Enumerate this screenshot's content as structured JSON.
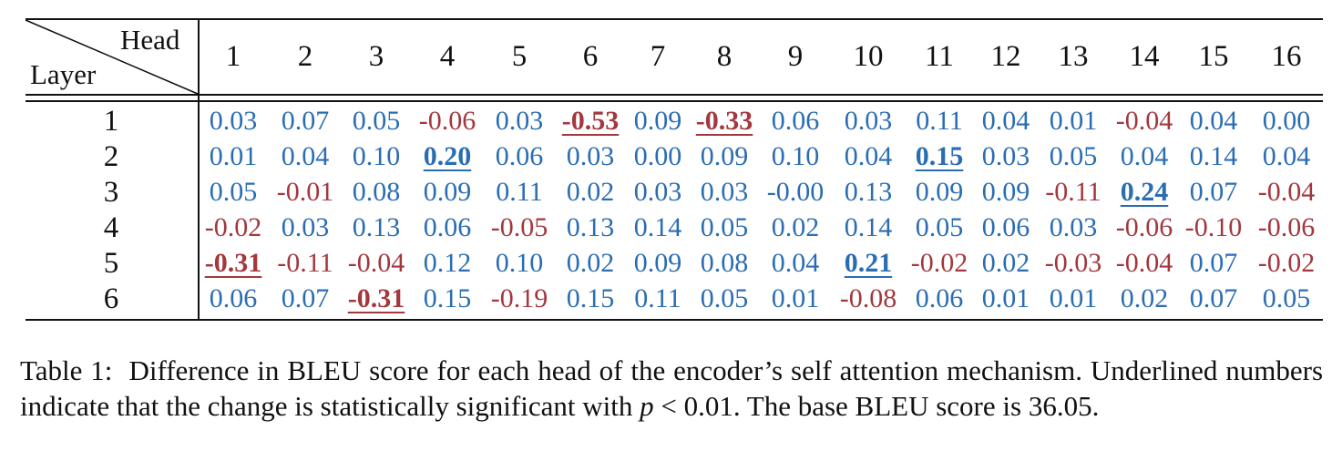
{
  "table": {
    "corner_col_label": "Head",
    "corner_row_label": "Layer",
    "heads": [
      "1",
      "2",
      "3",
      "4",
      "5",
      "6",
      "7",
      "8",
      "9",
      "10",
      "11",
      "12",
      "13",
      "14",
      "15",
      "16"
    ],
    "layers": [
      "1",
      "2",
      "3",
      "4",
      "5",
      "6"
    ],
    "values": [
      [
        "0.03",
        "0.07",
        "0.05",
        "-0.06",
        "0.03",
        "-0.53",
        "0.09",
        "-0.33",
        "0.06",
        "0.03",
        "0.11",
        "0.04",
        "0.01",
        "-0.04",
        "0.04",
        "0.00"
      ],
      [
        "0.01",
        "0.04",
        "0.10",
        "0.20",
        "0.06",
        "0.03",
        "0.00",
        "0.09",
        "0.10",
        "0.04",
        "0.15",
        "0.03",
        "0.05",
        "0.04",
        "0.14",
        "0.04"
      ],
      [
        "0.05",
        "-0.01",
        "0.08",
        "0.09",
        "0.11",
        "0.02",
        "0.03",
        "0.03",
        "-0.00",
        "0.13",
        "0.09",
        "0.09",
        "-0.11",
        "0.24",
        "0.07",
        "-0.04"
      ],
      [
        "-0.02",
        "0.03",
        "0.13",
        "0.06",
        "-0.05",
        "0.13",
        "0.14",
        "0.05",
        "0.02",
        "0.14",
        "0.05",
        "0.06",
        "0.03",
        "-0.06",
        "-0.10",
        "-0.06"
      ],
      [
        "-0.31",
        "-0.11",
        "-0.04",
        "0.12",
        "0.10",
        "0.02",
        "0.09",
        "0.08",
        "0.04",
        "0.21",
        "-0.02",
        "0.02",
        "-0.03",
        "-0.04",
        "0.07",
        "-0.02"
      ],
      [
        "0.06",
        "0.07",
        "-0.31",
        "0.15",
        "-0.19",
        "0.15",
        "0.11",
        "0.05",
        "0.01",
        "-0.08",
        "0.06",
        "0.01",
        "0.01",
        "0.02",
        "0.07",
        "0.05"
      ]
    ],
    "significant": [
      [
        0,
        5
      ],
      [
        0,
        7
      ],
      [
        1,
        3
      ],
      [
        1,
        10
      ],
      [
        2,
        13
      ],
      [
        4,
        0
      ],
      [
        4,
        9
      ],
      [
        5,
        2
      ]
    ],
    "colors": {
      "positive": "#2a6db3",
      "negative": "#a3383e"
    }
  },
  "caption": {
    "label": "Table 1:",
    "sentence1": "Difference in BLEU score for each head of the encoder’s self attention mechanism. Underlined numbers indicate that the change is statistically significant with",
    "math_var": "p",
    "math_rel": " < 0.01.",
    "sentence2": " The base BLEU score is 36.05."
  }
}
